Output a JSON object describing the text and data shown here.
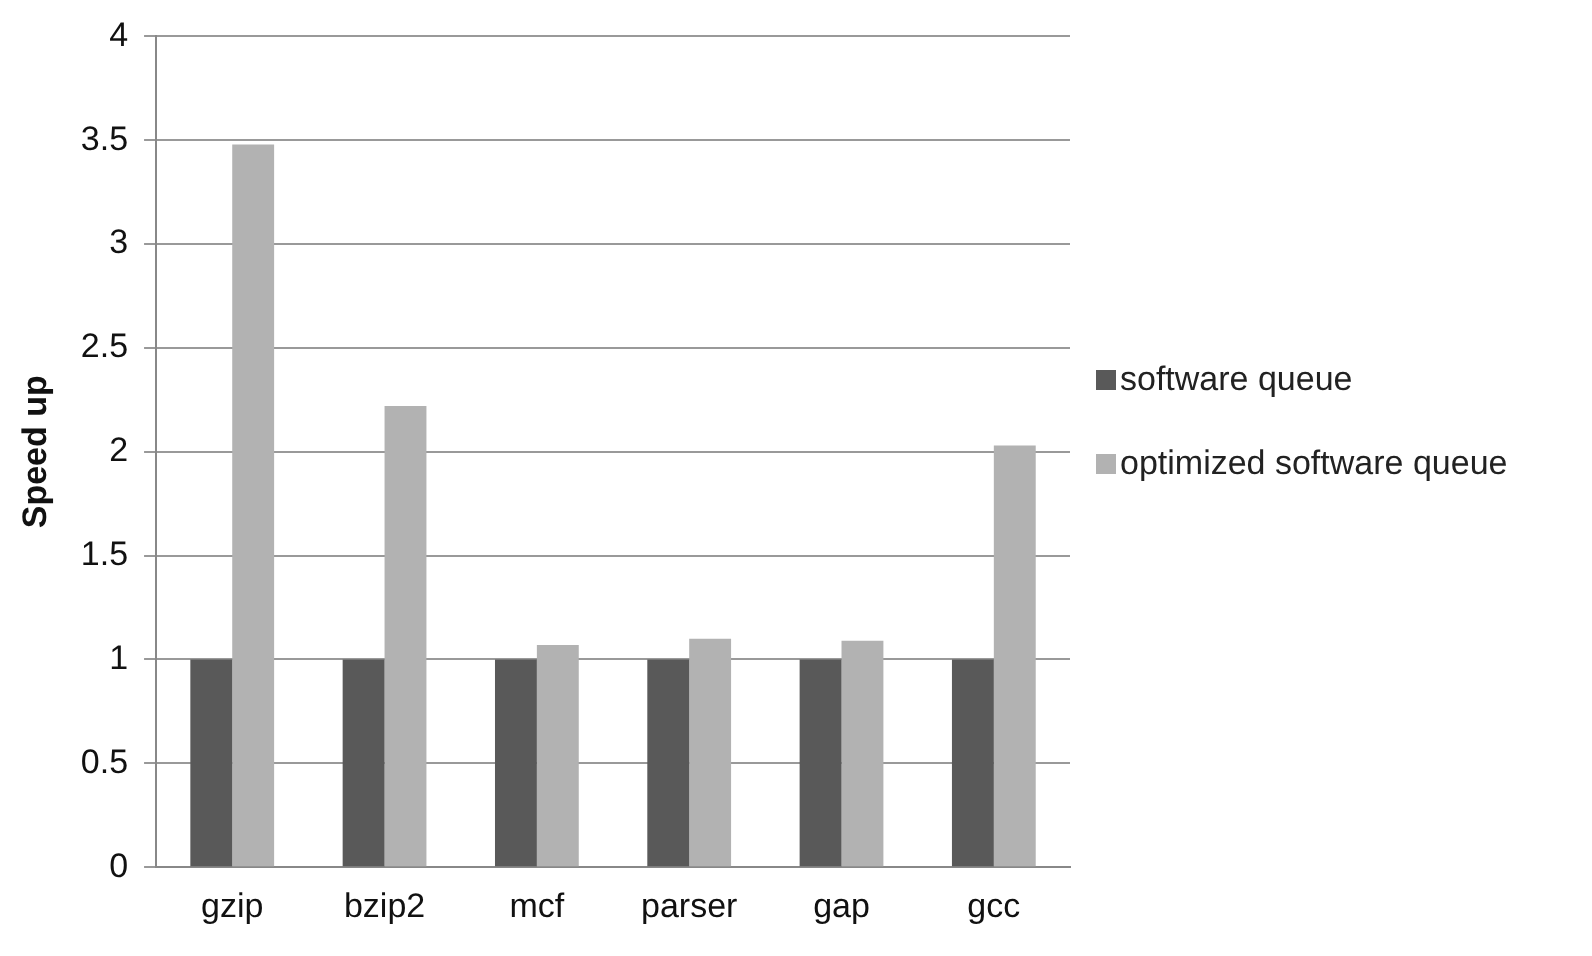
{
  "chart_data": {
    "type": "bar",
    "ylabel": "Speed up",
    "categories": [
      "gzip",
      "bzip2",
      "mcf",
      "parser",
      "gap",
      "gcc"
    ],
    "series": [
      {
        "name": "software queue",
        "color": "#595959",
        "values": [
          1,
          1,
          1,
          1,
          1,
          1
        ]
      },
      {
        "name": "optimized software queue",
        "color": "#b2b2b2",
        "values": [
          3.48,
          2.22,
          1.07,
          1.1,
          1.09,
          2.03
        ]
      }
    ],
    "ylim": [
      0,
      4
    ],
    "yticks": [
      0,
      0.5,
      1,
      1.5,
      2,
      2.5,
      3,
      3.5,
      4
    ],
    "grid": "y",
    "legend": "right"
  }
}
